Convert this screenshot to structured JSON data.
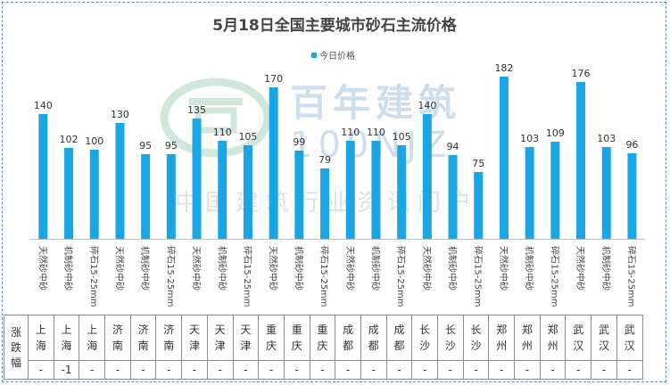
{
  "chart_data": {
    "type": "bar",
    "title": "5月18日全国主要城市砂石主流价格",
    "legend": "今日价格",
    "legend_position": "top",
    "series": [
      {
        "name": "今日价格",
        "values": [
          140,
          102,
          100,
          130,
          95,
          95,
          135,
          110,
          105,
          170,
          99,
          79,
          110,
          110,
          105,
          140,
          94,
          75,
          182,
          103,
          109,
          176,
          103,
          96
        ]
      }
    ],
    "categories": [
      "天然砂中砂",
      "机制砂中砂",
      "碎石15-25mm",
      "天然砂中砂",
      "机制砂中砂",
      "碎石15-25mm",
      "天然砂中砂",
      "机制砂中砂",
      "碎石15-25mm",
      "天然砂中砂",
      "机制砂中砂",
      "碎石15-25mm",
      "天然砂中砂",
      "机制砂中砂",
      "碎石15-25mm",
      "天然砂中砂",
      "机制砂中砂",
      "碎石15-25mm",
      "天然砂中砂",
      "机制砂中砂",
      "碎石15-25mm",
      "天然砂中砂",
      "机制砂中砂",
      "碎石15-25mm"
    ],
    "cities": [
      "上海",
      "上海",
      "上海",
      "济南",
      "济南",
      "济南",
      "天津",
      "天津",
      "天津",
      "重庆",
      "重庆",
      "重庆",
      "成都",
      "成都",
      "成都",
      "长沙",
      "长沙",
      "长沙",
      "郑州",
      "郑州",
      "郑州",
      "武汉",
      "武汉",
      "武汉"
    ],
    "changes": [
      "-",
      "-1",
      "-",
      "-",
      "-",
      "-",
      "-",
      "-",
      "-",
      "-",
      "-",
      "-",
      "-",
      "-",
      "-",
      "-",
      "-",
      "-",
      "-",
      "-",
      "-",
      "-",
      "-",
      "-"
    ],
    "change_row_label": "涨跌幅",
    "ylim": [
      0,
      190
    ],
    "bar_color": "#1aa6e4"
  },
  "watermark": {
    "brand": "百年建筑",
    "code": "100NJZ",
    "slogan": "中国建筑行业资讯门户"
  }
}
